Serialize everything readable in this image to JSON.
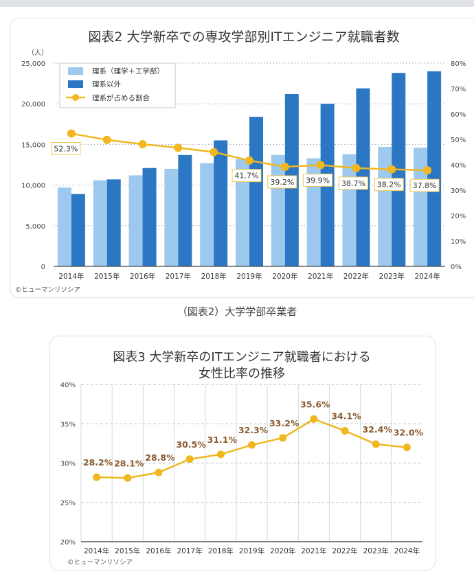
{
  "caption": "（図表2）大学学部卒業者",
  "chart_data": [
    {
      "type": "bar+line",
      "title": "図表2  大学新卒での専攻学部別ITエンジニア就職者数",
      "ylabel": "（人）",
      "categories": [
        "2014年",
        "2015年",
        "2016年",
        "2017年",
        "2018年",
        "2019年",
        "2020年",
        "2021年",
        "2022年",
        "2023年",
        "2024年"
      ],
      "ylim": [
        0,
        25000
      ],
      "yticks": [
        "0",
        "5,000",
        "10,000",
        "15,000",
        "20,000",
        "25,000"
      ],
      "y2lim": [
        0,
        80
      ],
      "y2ticks": [
        "0%",
        "10%",
        "20%",
        "30%",
        "40%",
        "50%",
        "60%",
        "70%",
        "80%"
      ],
      "grid": "horizontal dotted",
      "legend_placement": "top-left",
      "series": [
        {
          "name": "理系（理学＋工学部）",
          "kind": "bar",
          "color": "#9dc9ee",
          "values": [
            9700,
            10600,
            11200,
            12000,
            12700,
            13200,
            13700,
            13300,
            13800,
            14700,
            14600
          ]
        },
        {
          "name": "理系以外",
          "kind": "bar",
          "color": "#2b77c3",
          "values": [
            8900,
            10700,
            12100,
            13700,
            15500,
            18400,
            21200,
            20000,
            21900,
            23800,
            24000
          ]
        },
        {
          "name": "理系が占める割合",
          "kind": "line",
          "axis": "right",
          "color": "#f2b71f",
          "values": [
            52.3,
            49.8,
            48.1,
            46.7,
            45.0,
            41.7,
            39.2,
            39.9,
            38.7,
            38.2,
            37.8
          ],
          "labels": [
            "52.3%",
            null,
            null,
            null,
            null,
            "41.7%",
            "39.2%",
            "39.9%",
            "38.7%",
            "38.2%",
            "37.8%"
          ]
        }
      ],
      "credit": "©ヒューマンリソシア"
    },
    {
      "type": "line",
      "title": "図表3  大学新卒のITエンジニア就職者における",
      "title_line2": "女性比率の推移",
      "categories": [
        "2014年",
        "2015年",
        "2016年",
        "2017年",
        "2018年",
        "2019年",
        "2020年",
        "2021年",
        "2022年",
        "2023年",
        "2024年"
      ],
      "ylim": [
        20,
        40
      ],
      "yticks": [
        "20%",
        "25%",
        "30%",
        "35%",
        "40%"
      ],
      "grid": "horizontal dashed, vertical solid",
      "series": [
        {
          "kind": "line",
          "color": "#f0b81e",
          "label_color": "#8a5a2e",
          "values": [
            28.2,
            28.1,
            28.8,
            30.5,
            31.1,
            32.3,
            33.2,
            35.6,
            34.1,
            32.4,
            32.0
          ],
          "labels": [
            "28.2%",
            "28.1%",
            "28.8%",
            "30.5%",
            "31.1%",
            "32.3%",
            "33.2%",
            "35.6%",
            "34.1%",
            "32.4%",
            "32.0%"
          ]
        }
      ],
      "credit": "©ヒューマンリソシア"
    }
  ]
}
